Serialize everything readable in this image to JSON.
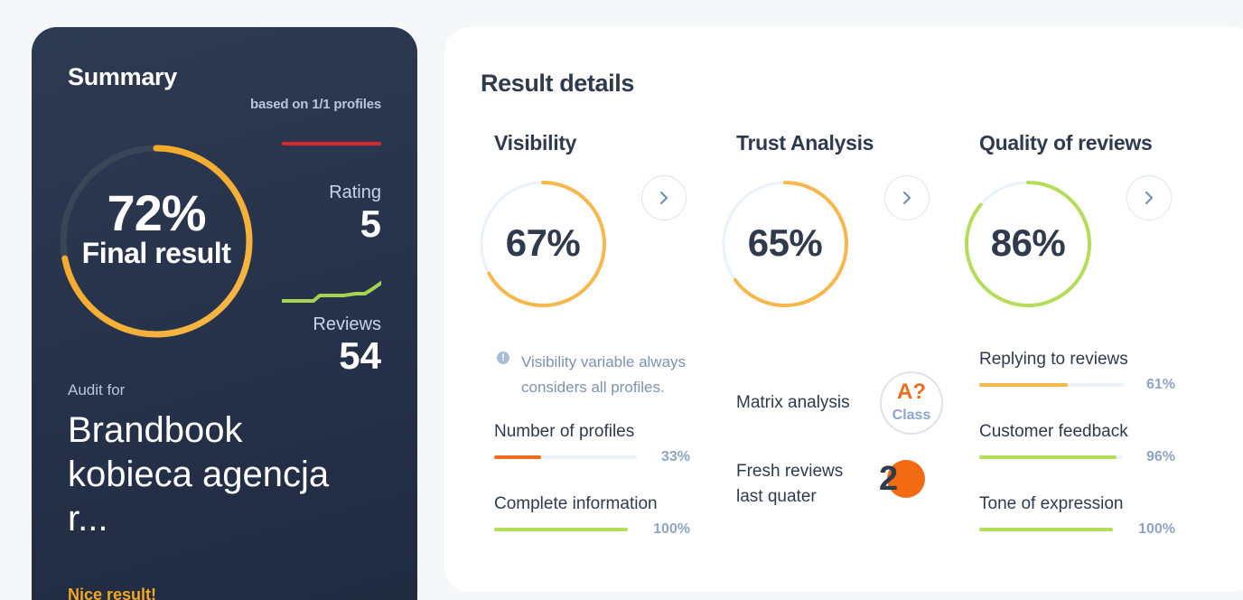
{
  "summary": {
    "title": "Summary",
    "based_on": "based on 1/1 profiles",
    "final_percent": "72%",
    "final_percent_value": 72,
    "final_label": "Final result",
    "rating_label": "Rating",
    "rating_value": "5",
    "reviews_label": "Reviews",
    "reviews_value": "54",
    "audit_for": "Audit for",
    "audit_name": "Brandbook kobiecaagencja r...",
    "audit_name_display": "Brandbook kobieca agencja r...",
    "status": "Nice result!"
  },
  "details": {
    "title": "Result details",
    "visibility": {
      "title": "Visibility",
      "percent": "67%",
      "value": 67,
      "color": "#f6b84c",
      "info": "Visibility variable always considers all profiles.",
      "metrics": [
        {
          "label": "Number of profiles",
          "pct": "33%",
          "value": 33,
          "color": "#ef6c1e"
        },
        {
          "label": "Complete information",
          "pct": "100%",
          "value": 100,
          "color": "#b4dd5a"
        }
      ]
    },
    "trust": {
      "title": "Trust Analysis",
      "percent": "65%",
      "value": 65,
      "color": "#f6b84c",
      "matrix_label": "Matrix analysis",
      "class_main": "A?",
      "class_sub": "Class",
      "fresh_label": "Fresh reviews last quater",
      "fresh_value": "2"
    },
    "quality": {
      "title": "Quality of reviews",
      "percent": "86%",
      "value": 86,
      "color": "#b4dd5a",
      "metrics": [
        {
          "label": "Replying to reviews",
          "pct": "61%",
          "value": 61,
          "color": "#f6b84c"
        },
        {
          "label": "Customer feedback",
          "pct": "96%",
          "value": 96,
          "color": "#b4dd5a"
        },
        {
          "label": "Tone of expression",
          "pct": "100%",
          "value": 100,
          "color": "#b4dd5a"
        }
      ]
    }
  },
  "colors": {
    "accent_orange": "#f5a623",
    "accent_green": "#b4dd5a",
    "danger_red": "#d4292a",
    "ring_track": "#e9f1fb"
  },
  "icons": [
    "info-icon",
    "chevron-right-icon"
  ]
}
